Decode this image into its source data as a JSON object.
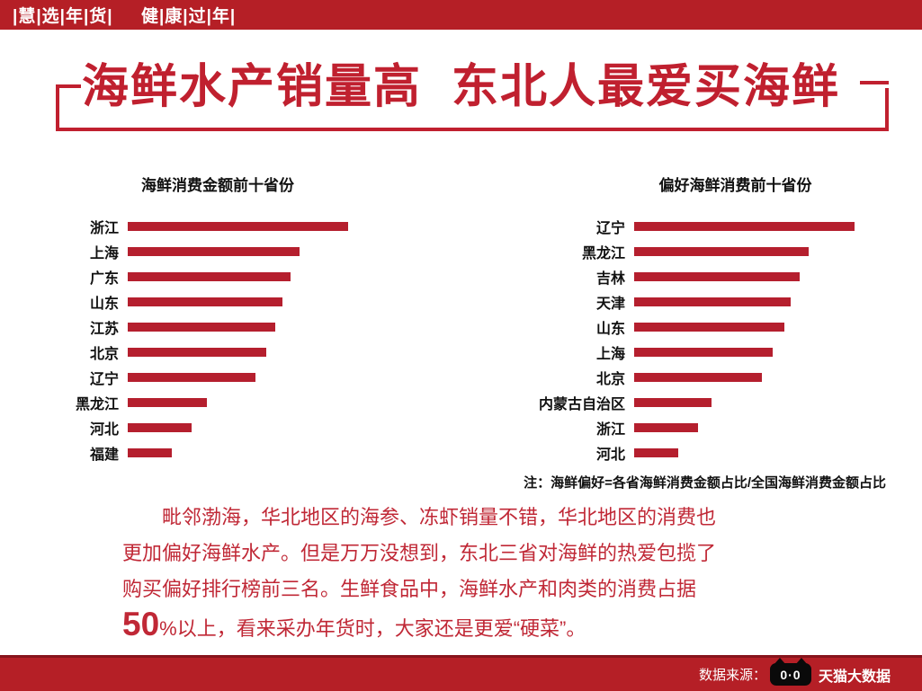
{
  "banner": {
    "text": "|慧|选|年|货|     健|康|过|年|"
  },
  "title": "海鲜水产销量高  东北人最爱买海鲜",
  "chart_data": [
    {
      "type": "bar",
      "orientation": "horizontal",
      "title": "海鲜消费金额前十省份",
      "categories": [
        "浙江",
        "上海",
        "广东",
        "山东",
        "江苏",
        "北京",
        "辽宁",
        "黑龙江",
        "河北",
        "福建"
      ],
      "values": [
        100,
        78,
        74,
        70,
        67,
        63,
        58,
        36,
        29,
        20
      ],
      "xlabel": "",
      "ylabel": "",
      "xlim": [
        0,
        100
      ],
      "grid": false,
      "legend": false,
      "bar_color": "#b51f2e"
    },
    {
      "type": "bar",
      "orientation": "horizontal",
      "title": "偏好海鲜消费前十省份",
      "categories": [
        "辽宁",
        "黑龙江",
        "吉林",
        "天津",
        "山东",
        "上海",
        "北京",
        "内蒙古自治区",
        "浙江",
        "河北"
      ],
      "values": [
        100,
        79,
        75,
        71,
        68,
        63,
        58,
        35,
        29,
        20
      ],
      "xlabel": "",
      "ylabel": "",
      "xlim": [
        0,
        100
      ],
      "grid": false,
      "legend": false,
      "bar_color": "#b51f2e"
    }
  ],
  "note": "注：海鲜偏好=各省海鲜消费金额占比/全国海鲜消费金额占比",
  "paragraph": {
    "line1": "毗邻渤海，华北地区的海参、冻虾销量不错，华北地区的消费也",
    "line2": "更加偏好海鲜水产。但是万万没想到，东北三省对海鲜的热爱包揽了",
    "line3": "购买偏好排行榜前三名。生鲜食品中，海鲜水产和肉类的消费占据",
    "line4_big": "50",
    "line4_rest": "%以上，看来采办年货时，大家还是更爱“硬菜”。"
  },
  "footer": {
    "source_label": "数据来源：",
    "logo_text": "0·0",
    "brand": "天猫大数据"
  },
  "colors": {
    "banner_red": "#b51f26",
    "bar_red": "#b51f2e",
    "title_red": "#c0202f",
    "paragraph_red": "#c02836"
  }
}
